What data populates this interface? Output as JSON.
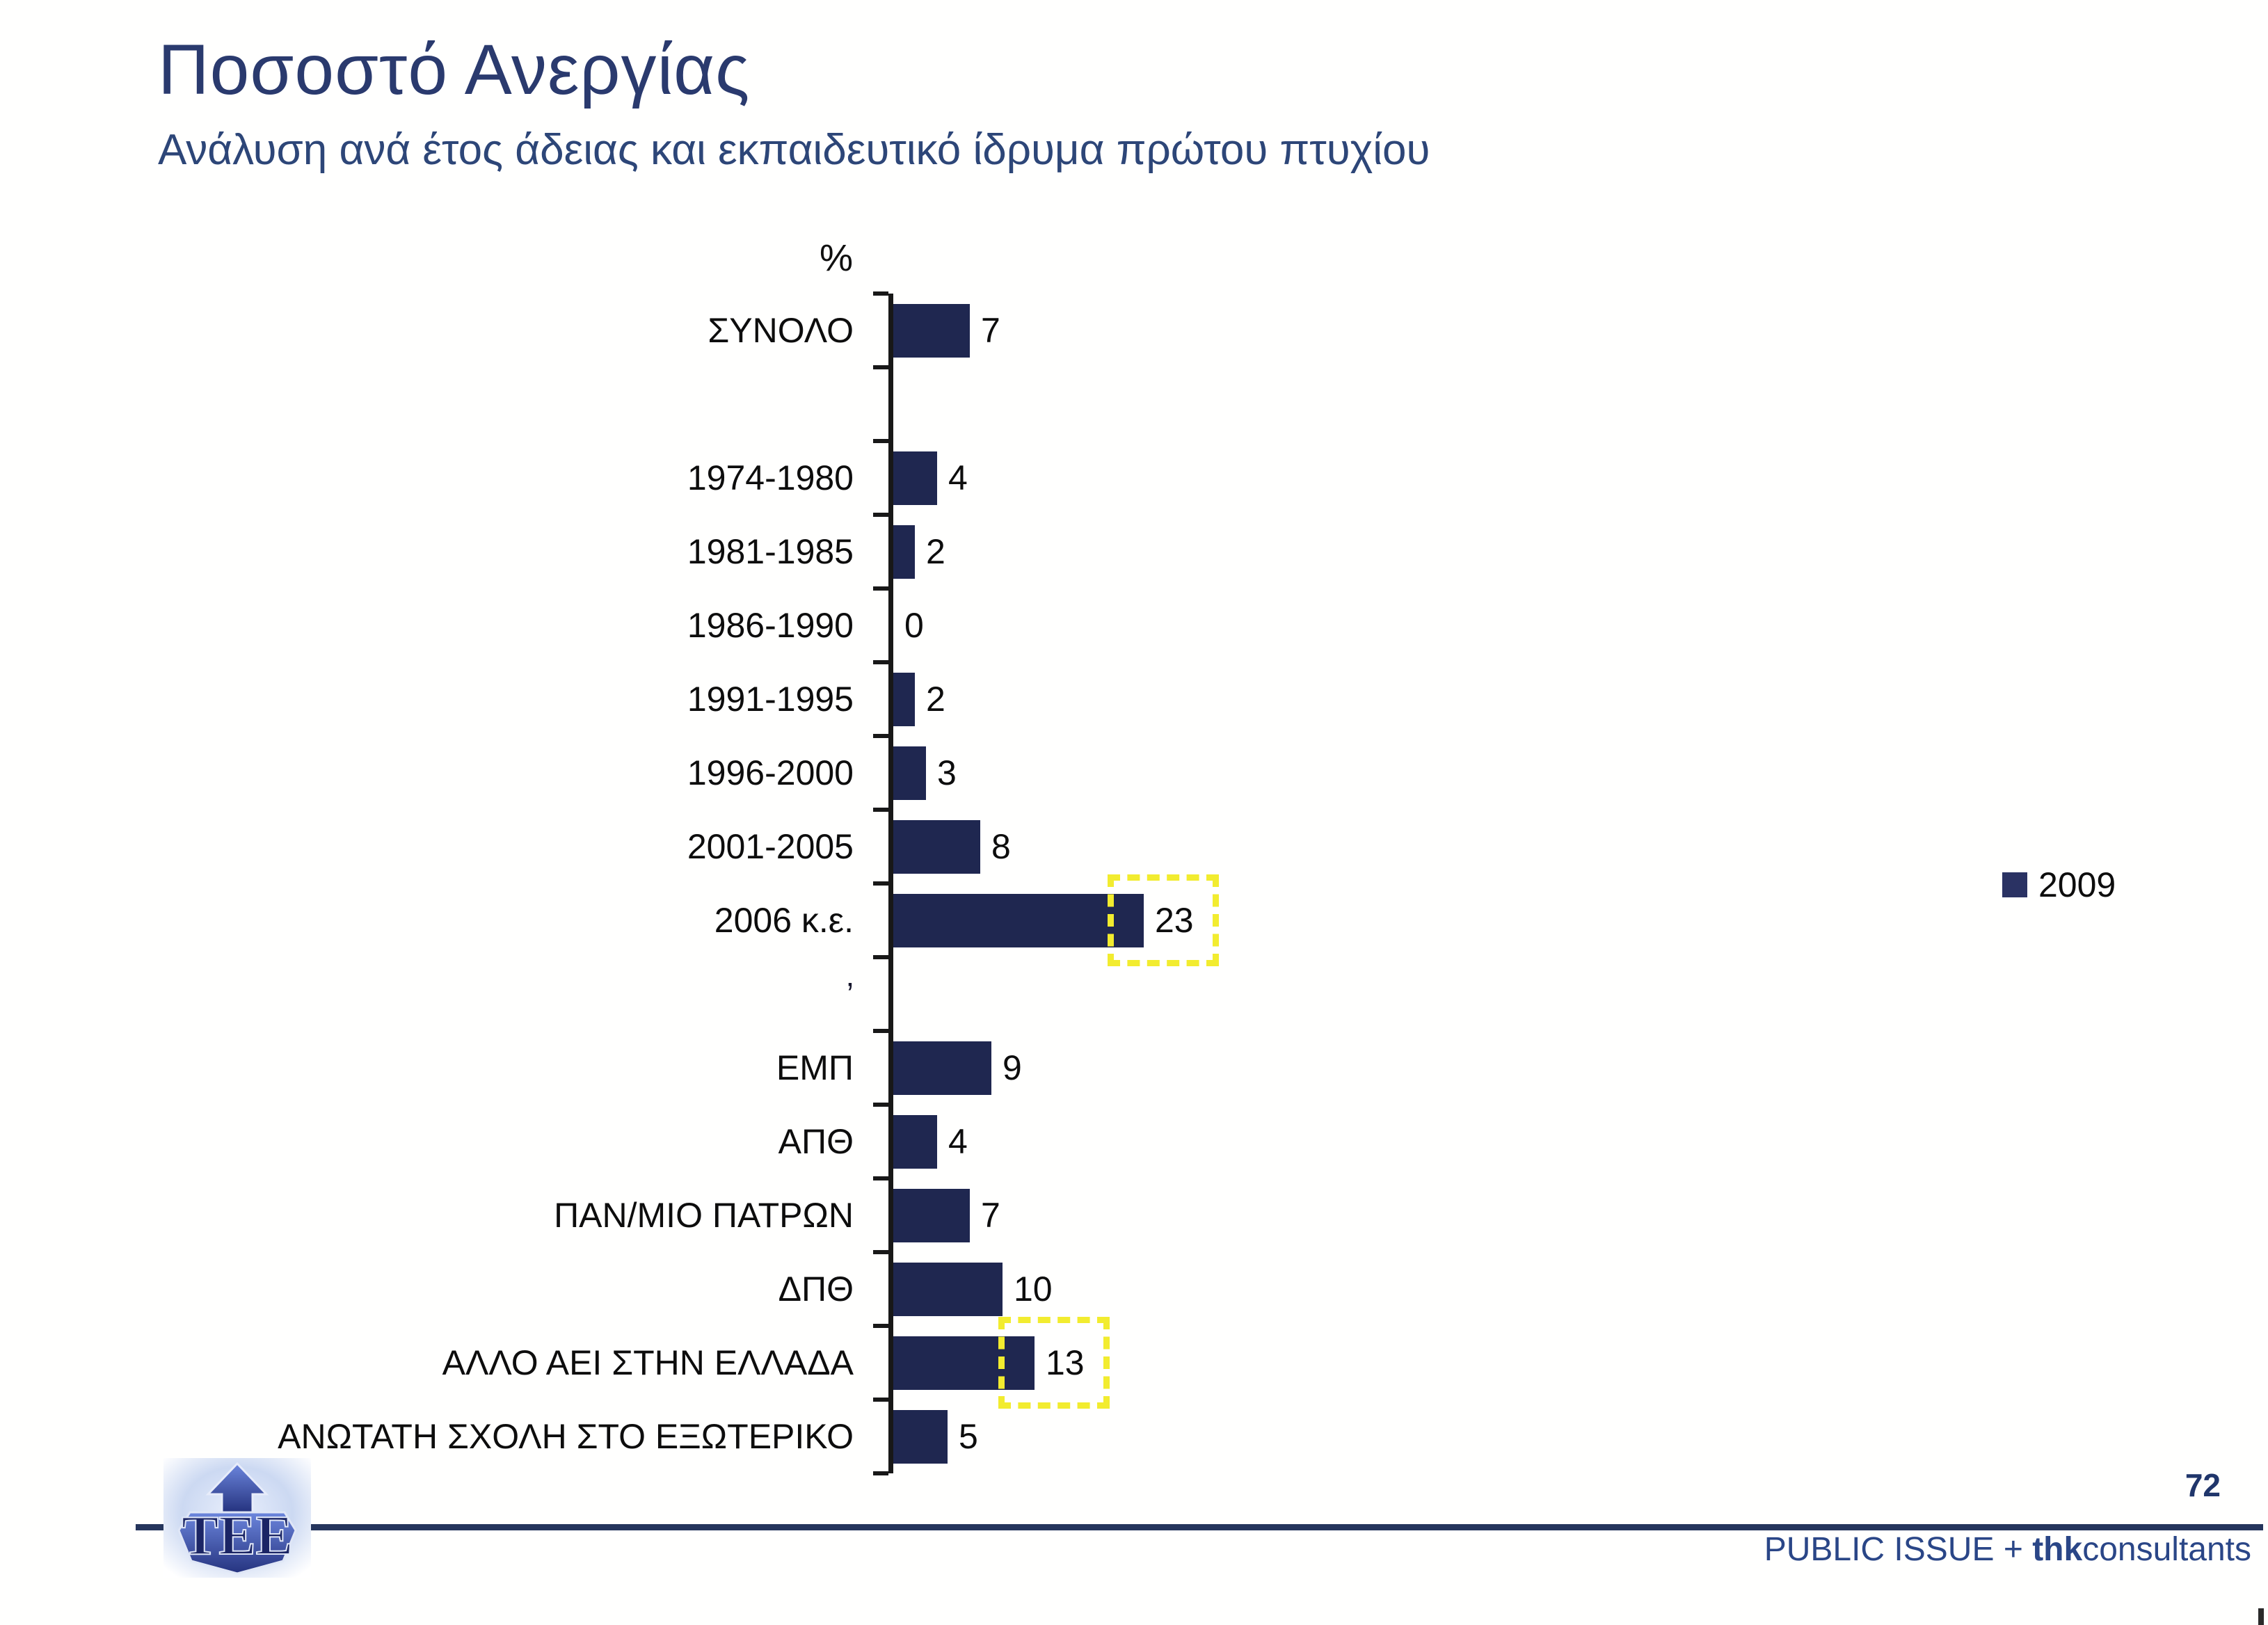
{
  "slide": {
    "title": "Ποσοστό Ανεργίας",
    "subtitle": "Ανάλυση ανά έτος άδειας και εκπαιδευτικό ίδρυμα πρώτου πτυχίου"
  },
  "chart_data": {
    "type": "bar",
    "orientation": "horizontal",
    "axis_label": "%",
    "xlim": [
      0,
      25
    ],
    "grid": false,
    "legend_position": "right",
    "legend": [
      {
        "label": "2009",
        "color": "#1f2750"
      }
    ],
    "highlighted_categories": [
      "2006 κ.ε.",
      "ΑΛΛΟ ΑΕΙ ΣΤΗΝ ΕΛΛΑΔΑ"
    ],
    "items": [
      {
        "label": "ΣΥΝΟΛΟ",
        "value": 7
      },
      {
        "label": "",
        "spacer": true
      },
      {
        "label": "1974-1980",
        "value": 4
      },
      {
        "label": "1981-1985",
        "value": 2
      },
      {
        "label": "1986-1990",
        "value": 0
      },
      {
        "label": "1991-1995",
        "value": 2
      },
      {
        "label": "1996-2000",
        "value": 3
      },
      {
        "label": "2001-2005",
        "value": 8
      },
      {
        "label": "2006 κ.ε.",
        "value": 23,
        "highlighted": true
      },
      {
        "label": "’",
        "spacer": true
      },
      {
        "label": "ΕΜΠ",
        "value": 9
      },
      {
        "label": "ΑΠΘ",
        "value": 4
      },
      {
        "label": "ΠΑΝ/ΜΙΟ ΠΑΤΡΩΝ",
        "value": 7
      },
      {
        "label": "ΔΠΘ",
        "value": 10
      },
      {
        "label": "ΑΛΛΟ ΑΕΙ ΣΤΗΝ ΕΛΛΑΔΑ",
        "value": 13,
        "highlighted": true
      },
      {
        "label": "ΑΝΩΤΑΤΗ ΣΧΟΛΗ ΣΤΟ ΕΞΩΤΕΡΙΚΟ",
        "value": 5
      }
    ]
  },
  "colors": {
    "bar": "#1f2750",
    "highlight": "#f2ec2f",
    "title": "#2a3a6e",
    "footer": "#2a4687"
  },
  "footer": {
    "page_number": "72",
    "brand_prefix": "PUBLIC ISSUE + ",
    "brand_bold": "thk",
    "brand_suffix": "consultants",
    "logo_text": "TEE"
  }
}
